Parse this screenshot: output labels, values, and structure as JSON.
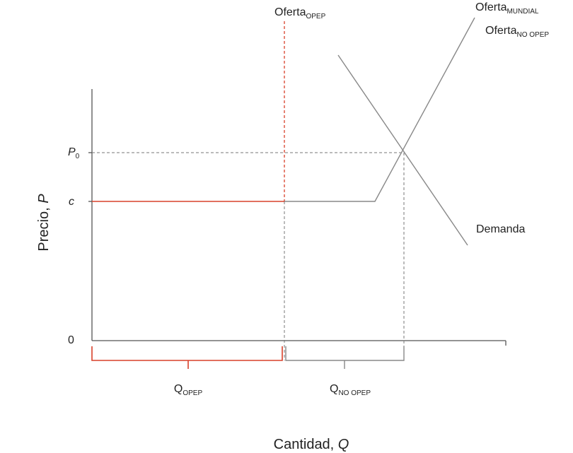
{
  "labels": {
    "oferta_opep": {
      "main": "Oferta",
      "sub": "OPEP"
    },
    "oferta_mundial": {
      "main": "Oferta",
      "sub": "MUNDIAL"
    },
    "oferta_no_opep": {
      "main": "Oferta",
      "sub": "NO OPEP"
    },
    "demanda": "Demanda"
  },
  "axes": {
    "y_label": {
      "text": "Precio, ",
      "var": "P"
    },
    "x_label": {
      "text": "Cantidad, ",
      "var": "Q"
    }
  },
  "ticks": {
    "p0": {
      "main": "P",
      "sub": "0"
    },
    "c": "c",
    "zero": "0"
  },
  "brackets": {
    "q_opep": {
      "main": "Q",
      "sub": "OPEP"
    },
    "q_no_opep": {
      "main": "Q",
      "sub": "NO OPEP"
    }
  }
}
